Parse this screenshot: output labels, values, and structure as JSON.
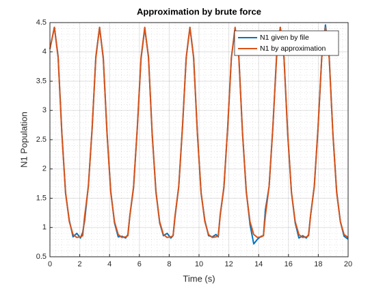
{
  "chart_data": {
    "type": "line",
    "title": "Approximation by brute force",
    "xlabel": "Time (s)",
    "ylabel": "N1 Population",
    "x": [
      0,
      0.3,
      0.55,
      0.8,
      1.05,
      1.3,
      1.55,
      1.8,
      2.05,
      2.2,
      2.33,
      2.58,
      2.83,
      3.08,
      3.33,
      3.58,
      3.83,
      4.08,
      4.33,
      4.58,
      4.83,
      5.08,
      5.23,
      5.36,
      5.61,
      5.86,
      6.11,
      6.36,
      6.61,
      6.86,
      7.11,
      7.36,
      7.61,
      7.86,
      8.11,
      8.26,
      8.39,
      8.64,
      8.89,
      9.14,
      9.39,
      9.64,
      9.89,
      10.14,
      10.39,
      10.64,
      10.89,
      11.14,
      11.29,
      11.42,
      11.67,
      11.92,
      12.17,
      12.42,
      12.67,
      12.92,
      13.17,
      13.42,
      13.67,
      13.92,
      14.17,
      14.32,
      14.45,
      14.7,
      14.95,
      15.2,
      15.45,
      15.7,
      15.95,
      16.2,
      16.45,
      16.7,
      16.95,
      17.2,
      17.35,
      17.48,
      17.73,
      17.98,
      18.23,
      18.48,
      18.73,
      18.98,
      19.23,
      19.48,
      19.73,
      20
    ],
    "series": [
      {
        "name": "N1 given by file",
        "color": "#0072bd",
        "values": [
          4.05,
          4.42,
          3.92,
          2.62,
          1.58,
          1.12,
          0.84,
          0.9,
          0.82,
          0.92,
          1.12,
          1.72,
          2.68,
          3.92,
          4.42,
          3.88,
          2.62,
          1.62,
          1.08,
          0.84,
          0.85,
          0.82,
          0.88,
          1.2,
          1.68,
          2.7,
          3.88,
          4.4,
          3.92,
          2.58,
          1.62,
          1.08,
          0.86,
          0.9,
          0.82,
          0.86,
          1.18,
          1.7,
          2.72,
          3.9,
          4.42,
          3.9,
          2.62,
          1.58,
          1.12,
          0.86,
          0.84,
          0.88,
          0.84,
          1.22,
          1.68,
          2.7,
          3.9,
          4.4,
          3.92,
          2.6,
          1.62,
          1.05,
          0.72,
          0.8,
          0.85,
          0.86,
          1.3,
          1.7,
          2.7,
          3.92,
          4.42,
          3.9,
          2.58,
          1.6,
          1.08,
          0.82,
          0.86,
          0.82,
          0.88,
          1.2,
          1.7,
          2.68,
          3.9,
          4.46,
          3.92,
          2.6,
          1.62,
          1.1,
          0.85,
          0.8
        ]
      },
      {
        "name": "N1 by approximation",
        "color": "#d95319",
        "values": [
          4.05,
          4.42,
          3.9,
          2.6,
          1.6,
          1.1,
          0.88,
          0.83,
          0.84,
          0.86,
          1.2,
          1.7,
          2.7,
          3.9,
          4.42,
          3.9,
          2.6,
          1.6,
          1.1,
          0.88,
          0.83,
          0.84,
          0.86,
          1.2,
          1.7,
          2.7,
          3.9,
          4.42,
          3.9,
          2.6,
          1.6,
          1.1,
          0.88,
          0.83,
          0.84,
          0.86,
          1.2,
          1.7,
          2.7,
          3.9,
          4.42,
          3.9,
          2.6,
          1.6,
          1.1,
          0.88,
          0.83,
          0.84,
          0.86,
          1.2,
          1.7,
          2.7,
          3.9,
          4.42,
          3.9,
          2.6,
          1.6,
          1.1,
          0.88,
          0.83,
          0.84,
          0.86,
          1.2,
          1.7,
          2.7,
          3.9,
          4.42,
          3.9,
          2.6,
          1.6,
          1.1,
          0.88,
          0.83,
          0.84,
          0.86,
          1.2,
          1.7,
          2.7,
          3.9,
          4.42,
          3.9,
          2.6,
          1.6,
          1.1,
          0.88,
          0.83
        ]
      }
    ],
    "xlim": [
      0,
      20
    ],
    "ylim": [
      0.5,
      4.5
    ],
    "xticks": [
      0,
      2,
      4,
      6,
      8,
      10,
      12,
      14,
      16,
      18,
      20
    ],
    "yticks": [
      0.5,
      1,
      1.5,
      2,
      2.5,
      3,
      3.5,
      4,
      4.5
    ],
    "grid": true,
    "minor_grid": true,
    "legend": "northeast"
  }
}
